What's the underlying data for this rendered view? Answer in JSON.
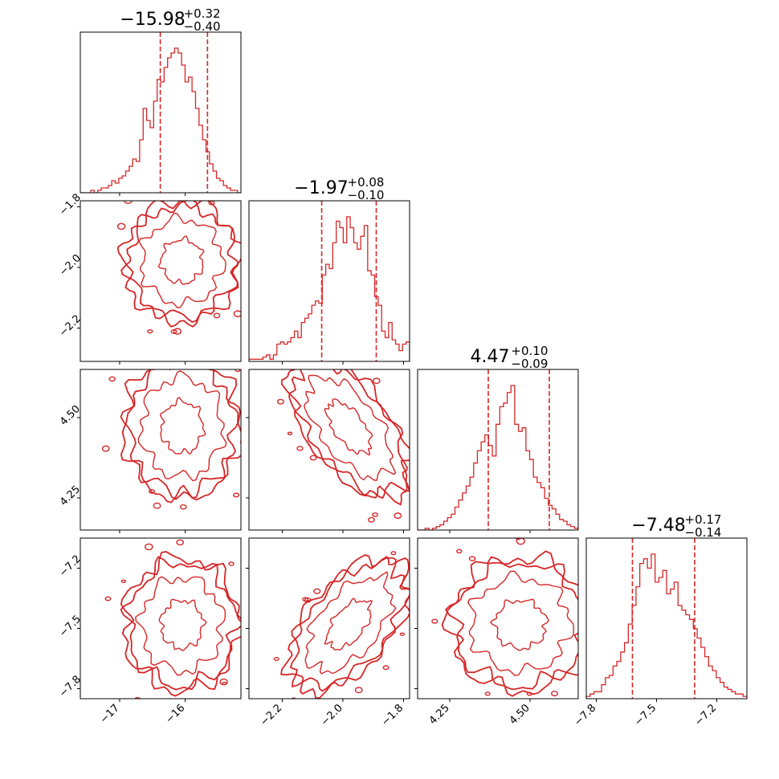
{
  "chart_data": {
    "type": "corner",
    "color": "#d62728",
    "parameters": [
      {
        "title": {
          "median": "−15.98",
          "plus": "+0.32",
          "minus": "−0.40"
        },
        "range": [
          -17.6,
          -15.15
        ],
        "quantiles": [
          -16.38,
          -15.66
        ],
        "ticks": [
          {
            "value": -17,
            "label": "−17"
          },
          {
            "value": -16,
            "label": "−16"
          }
        ],
        "hist": [
          0,
          0,
          0,
          1,
          0,
          1,
          2,
          2,
          3,
          5,
          4,
          6,
          7,
          9,
          11,
          14,
          13,
          22,
          35,
          30,
          27,
          38,
          47,
          46,
          52,
          56,
          58,
          60,
          58,
          53,
          46,
          48,
          42,
          35,
          28,
          22,
          17,
          12,
          9,
          6,
          5,
          3,
          2,
          1,
          1,
          0
        ],
        "center": -16.05,
        "spread": 0.4
      },
      {
        "title": {
          "median": "−1.97",
          "plus": "+0.08",
          "minus": "−0.10"
        },
        "range": [
          -2.31,
          -1.78
        ],
        "quantiles": [
          -2.07,
          -1.89
        ],
        "ticks": [
          {
            "value": -2.2,
            "label": "−2.2"
          },
          {
            "value": -2.0,
            "label": "−2.0"
          },
          {
            "value": -1.8,
            "label": "−1.8"
          }
        ],
        "hist": [
          1,
          1,
          1,
          1,
          2,
          3,
          1,
          3,
          8,
          9,
          8,
          9,
          11,
          14,
          11,
          18,
          20,
          22,
          26,
          28,
          27,
          40,
          45,
          43,
          55,
          65,
          62,
          55,
          67,
          62,
          55,
          52,
          58,
          63,
          42,
          40,
          30,
          26,
          14,
          11,
          18,
          10,
          8,
          5,
          8,
          9
        ],
        "center": -1.98,
        "spread": 0.09
      },
      {
        "title": {
          "median": "4.47",
          "plus": "+0.10",
          "minus": "−0.09"
        },
        "range": [
          4.15,
          4.65
        ],
        "quantiles": [
          4.37,
          4.56
        ],
        "ticks": [
          {
            "value": 4.25,
            "label": "4.25"
          },
          {
            "value": 4.5,
            "label": "4.50"
          }
        ],
        "hist": [
          0,
          0,
          1,
          0,
          1,
          2,
          3,
          5,
          7,
          9,
          13,
          17,
          21,
          25,
          30,
          38,
          45,
          50,
          54,
          48,
          42,
          60,
          70,
          72,
          78,
          82,
          60,
          56,
          58,
          45,
          40,
          30,
          27,
          24,
          18,
          14,
          12,
          9,
          6,
          5,
          3,
          2,
          1
        ],
        "center": 4.47,
        "spread": 0.1
      },
      {
        "title": {
          "median": "−7.48",
          "plus": "+0.17",
          "minus": "−0.14"
        },
        "range": [
          -7.85,
          -7.05
        ],
        "quantiles": [
          -7.62,
          -7.31
        ],
        "ticks": [
          {
            "value": -7.8,
            "label": "−7.8"
          },
          {
            "value": -7.5,
            "label": "−7.5"
          },
          {
            "value": -7.2,
            "label": "−7.2"
          }
        ],
        "hist": [
          1,
          2,
          3,
          3,
          6,
          9,
          10,
          14,
          16,
          20,
          24,
          32,
          40,
          48,
          58,
          60,
          56,
          62,
          50,
          52,
          55,
          45,
          47,
          50,
          40,
          38,
          36,
          34,
          30,
          26,
          22,
          18,
          14,
          12,
          9,
          7,
          5,
          4,
          3,
          2,
          2,
          1
        ],
        "center": -7.48,
        "spread": 0.15
      }
    ]
  }
}
